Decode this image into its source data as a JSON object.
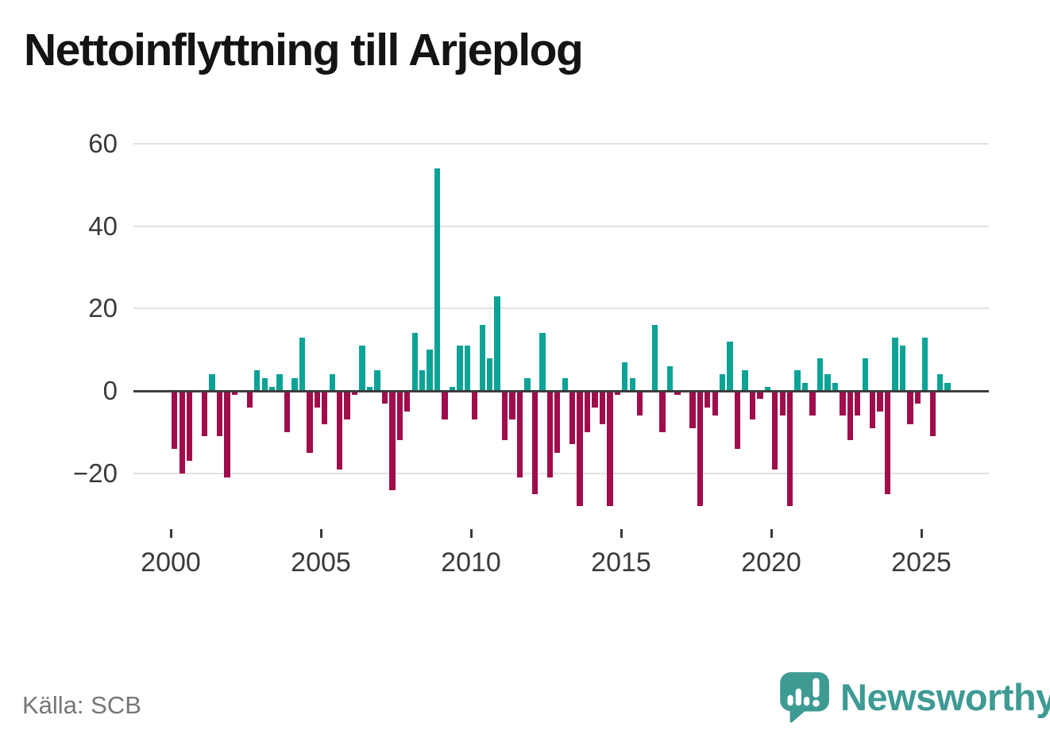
{
  "title": "Nettoinflyttning till Arjeplog",
  "source": "Källa: SCB",
  "brand": {
    "name": "Newsworthy",
    "icon": "newsworthy-speech-bubble-chart-icon"
  },
  "colors": {
    "positive_bar": "#0aa396",
    "negative_bar": "#a00c4c",
    "grid_line": "#e1e1e1",
    "zero_line": "#3d3d3d",
    "axis_text": "#3a3a3a",
    "title_text": "#141414",
    "source_text": "#767676",
    "brand_teal": "#3e9b94"
  },
  "chart_data": {
    "type": "bar",
    "title": "Nettoinflyttning till Arjeplog",
    "xlabel": "",
    "ylabel": "",
    "frequency": "quarterly",
    "x_tick_labels": [
      "2000",
      "2005",
      "2010",
      "2015",
      "2020",
      "2025"
    ],
    "x_tick_years": [
      2000,
      2005,
      2010,
      2015,
      2020,
      2025
    ],
    "y_ticks": [
      60,
      40,
      20,
      0,
      -20
    ],
    "y_tick_labels": [
      "60",
      "40",
      "20",
      "0",
      "−20"
    ],
    "ylim": [
      -30,
      62
    ],
    "grid": "horizontal",
    "legend": "none",
    "series_name": "Nettoinflyttning per kvartal",
    "years": [
      {
        "year": 2000,
        "values": [
          -14,
          -20,
          -17,
          0
        ]
      },
      {
        "year": 2001,
        "values": [
          -11,
          4,
          -11,
          -21
        ]
      },
      {
        "year": 2002,
        "values": [
          -1,
          0,
          -4,
          5
        ]
      },
      {
        "year": 2003,
        "values": [
          3,
          1,
          4,
          -10
        ]
      },
      {
        "year": 2004,
        "values": [
          3,
          13,
          -15,
          -4
        ]
      },
      {
        "year": 2005,
        "values": [
          -8,
          4,
          -19,
          -7
        ]
      },
      {
        "year": 2006,
        "values": [
          -1,
          11,
          1,
          5
        ]
      },
      {
        "year": 2007,
        "values": [
          -3,
          -24,
          -12,
          -5
        ]
      },
      {
        "year": 2008,
        "values": [
          14,
          5,
          10,
          54
        ]
      },
      {
        "year": 2009,
        "values": [
          -7,
          1,
          11,
          11
        ]
      },
      {
        "year": 2010,
        "values": [
          -7,
          16,
          8,
          23
        ]
      },
      {
        "year": 2011,
        "values": [
          -12,
          -7,
          -21,
          3
        ]
      },
      {
        "year": 2012,
        "values": [
          -25,
          14,
          -21,
          -15
        ]
      },
      {
        "year": 2013,
        "values": [
          3,
          -13,
          -28,
          -10
        ]
      },
      {
        "year": 2014,
        "values": [
          -4,
          -8,
          -28,
          -1
        ]
      },
      {
        "year": 2015,
        "values": [
          7,
          3,
          -6,
          0
        ]
      },
      {
        "year": 2016,
        "values": [
          16,
          -10,
          6,
          -1
        ]
      },
      {
        "year": 2017,
        "values": [
          0,
          -9,
          -28,
          -4
        ]
      },
      {
        "year": 2018,
        "values": [
          -6,
          4,
          12,
          -14
        ]
      },
      {
        "year": 2019,
        "values": [
          5,
          -7,
          -2,
          1
        ]
      },
      {
        "year": 2020,
        "values": [
          -19,
          -6,
          -28,
          5
        ]
      },
      {
        "year": 2021,
        "values": [
          2,
          -6,
          8,
          4
        ]
      },
      {
        "year": 2022,
        "values": [
          2,
          -6,
          -12,
          -6
        ]
      },
      {
        "year": 2023,
        "values": [
          8,
          -9,
          -5,
          -25
        ]
      },
      {
        "year": 2024,
        "values": [
          13,
          11,
          -8,
          -3
        ]
      },
      {
        "year": 2025,
        "values": [
          13,
          -11,
          4,
          2
        ]
      }
    ]
  }
}
